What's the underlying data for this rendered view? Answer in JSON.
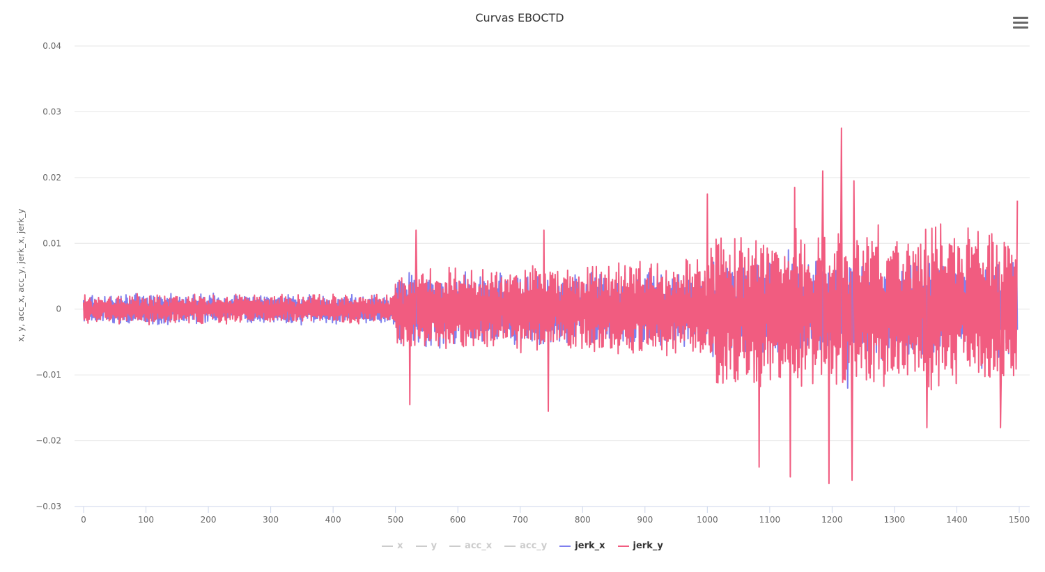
{
  "menu": {
    "icon": "hamburger-menu-icon"
  },
  "chart_data": {
    "type": "line",
    "title": "Curvas EBOCTD",
    "xlabel": "",
    "ylabel": "x, y, acc_x, acc_y, jerk_x, jerk_y",
    "xlim": [
      0,
      1500
    ],
    "ylim": [
      -0.03,
      0.04
    ],
    "xticks": [
      "0",
      "100",
      "200",
      "300",
      "400",
      "500",
      "600",
      "700",
      "800",
      "900",
      "1000",
      "1100",
      "1200",
      "1300",
      "1400",
      "1500"
    ],
    "yticks": [
      "0.04",
      "0.03",
      "0.02",
      "0.01",
      "0",
      "−0.01",
      "−0.02",
      "−0.03"
    ],
    "grid": true,
    "legend_position": "bottom-center",
    "series": [
      {
        "name": "x",
        "color": "#cccccc",
        "visible": false,
        "values": []
      },
      {
        "name": "y",
        "color": "#cccccc",
        "visible": false,
        "values": []
      },
      {
        "name": "acc_x",
        "color": "#cccccc",
        "visible": false,
        "values": []
      },
      {
        "name": "acc_y",
        "color": "#cccccc",
        "visible": false,
        "values": []
      },
      {
        "name": "jerk_x",
        "color": "#7f7fee",
        "visible": true,
        "envelope": [
          {
            "x": 0,
            "amp": 0.002
          },
          {
            "x": 495,
            "amp": 0.002
          },
          {
            "x": 505,
            "amp": 0.005
          },
          {
            "x": 1000,
            "amp": 0.005
          },
          {
            "x": 1010,
            "amp": 0.0065
          },
          {
            "x": 1500,
            "amp": 0.0065
          }
        ],
        "peaks": [
          {
            "x": 1130,
            "y": 0.009
          },
          {
            "x": 1180,
            "y": 0.007
          },
          {
            "x": 1225,
            "y": -0.012
          },
          {
            "x": 1440,
            "y": -0.009
          }
        ]
      },
      {
        "name": "jerk_y",
        "color": "#f15c80",
        "visible": true,
        "envelope": [
          {
            "x": 0,
            "amp": 0.002
          },
          {
            "x": 495,
            "amp": 0.002
          },
          {
            "x": 505,
            "amp": 0.0055
          },
          {
            "x": 1000,
            "amp": 0.0065
          },
          {
            "x": 1010,
            "amp": 0.011
          },
          {
            "x": 1500,
            "amp": 0.011
          }
        ],
        "peaks": [
          {
            "x": 523,
            "y": -0.0145
          },
          {
            "x": 533,
            "y": 0.012
          },
          {
            "x": 745,
            "y": -0.0155
          },
          {
            "x": 738,
            "y": 0.012
          },
          {
            "x": 1000,
            "y": 0.0175
          },
          {
            "x": 1083,
            "y": -0.024
          },
          {
            "x": 1133,
            "y": -0.0255
          },
          {
            "x": 1140,
            "y": 0.0185
          },
          {
            "x": 1185,
            "y": 0.021
          },
          {
            "x": 1195,
            "y": -0.0265
          },
          {
            "x": 1215,
            "y": 0.0275
          },
          {
            "x": 1232,
            "y": -0.026
          },
          {
            "x": 1235,
            "y": 0.0195
          },
          {
            "x": 1352,
            "y": -0.018
          },
          {
            "x": 1470,
            "y": -0.018
          },
          {
            "x": 1497,
            "y": 0.0165
          }
        ]
      }
    ]
  }
}
